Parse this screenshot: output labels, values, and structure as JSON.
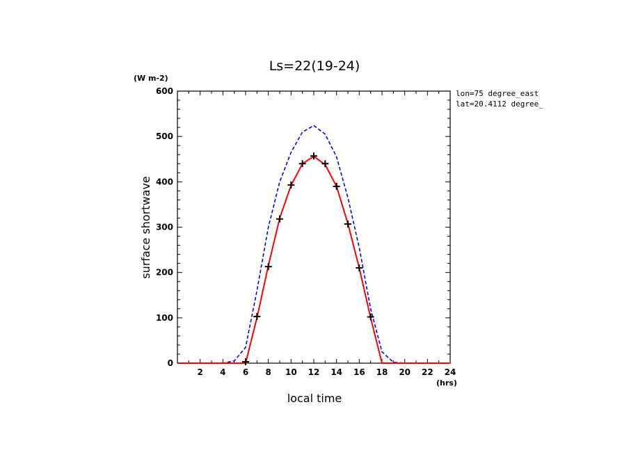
{
  "chart_data": {
    "type": "line",
    "title": "Ls=22(19-24)",
    "xlabel": "local time",
    "ylabel": "surface shortwave",
    "x_unit": "(hrs)",
    "y_unit": "(W m-2)",
    "annotations": [
      "lon=75 degree_east",
      "lat=20.4112 degree_"
    ],
    "xlim": [
      0,
      24
    ],
    "ylim": [
      0,
      600
    ],
    "x_ticks": [
      2,
      4,
      6,
      8,
      10,
      12,
      14,
      16,
      18,
      20,
      22,
      24
    ],
    "y_ticks": [
      0,
      100,
      200,
      300,
      400,
      500,
      600
    ],
    "grid": false,
    "series": [
      {
        "style": "dashed",
        "color": "#0000ff",
        "x": [
          0,
          1,
          2,
          3,
          4,
          5,
          6,
          7,
          8,
          9,
          10,
          11,
          12,
          13,
          14,
          15,
          16,
          17,
          18,
          19,
          20,
          21,
          22,
          23,
          24
        ],
        "y": [
          0,
          0,
          0,
          0,
          0,
          5,
          35,
          160,
          300,
          400,
          465,
          510,
          524,
          505,
          455,
          365,
          255,
          120,
          25,
          2,
          0,
          0,
          0,
          0,
          0
        ]
      },
      {
        "style": "solid",
        "color": "#ff0000",
        "x": [
          0,
          1,
          2,
          3,
          4,
          5,
          6,
          7,
          8,
          9,
          10,
          11,
          12,
          13,
          14,
          15,
          16,
          17,
          18,
          19,
          20,
          21,
          22,
          23,
          24
        ],
        "y": [
          0,
          0,
          0,
          0,
          0,
          0,
          0,
          100,
          215,
          320,
          392,
          440,
          456,
          438,
          390,
          308,
          210,
          100,
          0,
          0,
          0,
          0,
          0,
          0,
          0
        ]
      },
      {
        "style": "markers",
        "marker": "plus",
        "color": "#000000",
        "x": [
          6,
          7,
          8,
          9,
          10,
          11,
          12,
          13,
          14,
          15,
          16,
          17
        ],
        "y": [
          3,
          103,
          213,
          318,
          393,
          440,
          457,
          440,
          390,
          307,
          210,
          102
        ]
      }
    ]
  }
}
